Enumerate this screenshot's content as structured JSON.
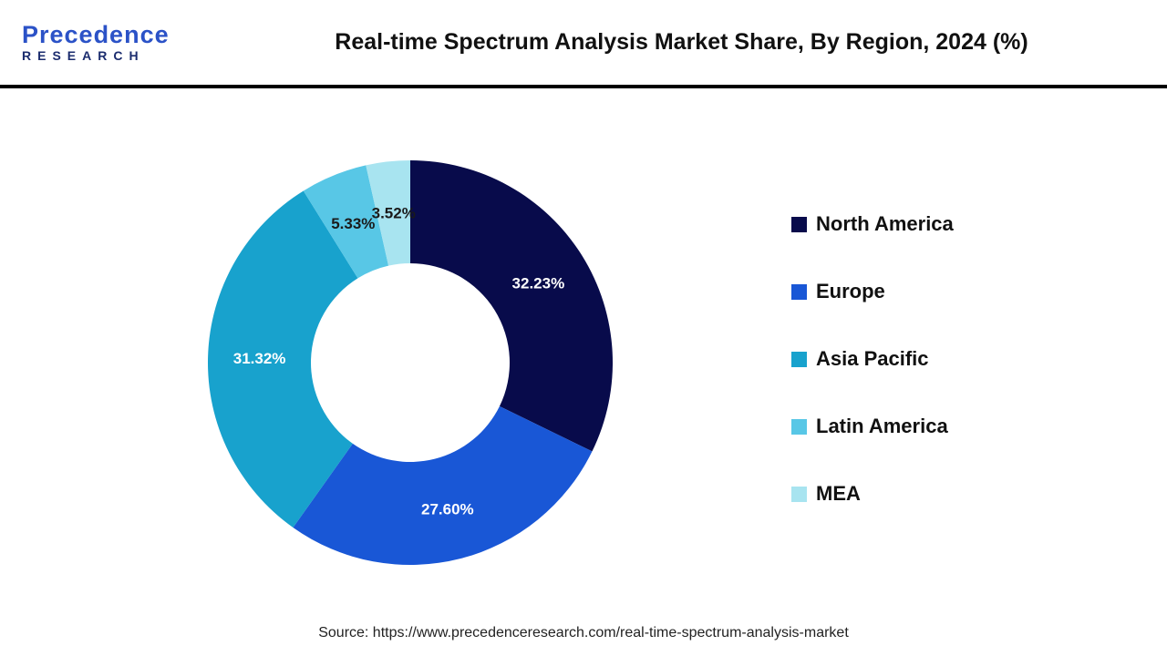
{
  "header": {
    "logo": {
      "line1": "Precedence",
      "line2": "RESEARCH"
    },
    "title": "Real-time Spectrum Analysis Market Share, By Region, 2024 (%)"
  },
  "chart_data": {
    "type": "pie",
    "subtype": "donut",
    "title": "Real-time Spectrum Analysis Market Share, By Region, 2024 (%)",
    "start_angle_deg": 0,
    "direction": "clockwise",
    "categories": [
      "North America",
      "Europe",
      "Asia Pacific",
      "Latin America",
      "MEA"
    ],
    "values": [
      32.23,
      27.6,
      31.32,
      5.33,
      3.52
    ],
    "labels": [
      "32.23%",
      "27.60%",
      "31.32%",
      "5.33%",
      "3.52%"
    ],
    "colors": [
      "#080B4B",
      "#1957D6",
      "#18A2CD",
      "#58C7E6",
      "#A8E4F0"
    ],
    "label_colors": [
      "#FFFFFF",
      "#FFFFFF",
      "#FFFFFF",
      "#1A1A1A",
      "#1A1A1A"
    ],
    "legend_position": "right",
    "total": 100
  },
  "footer": {
    "source": "Source: https://www.precedenceresearch.com/real-time-spectrum-analysis-market"
  }
}
